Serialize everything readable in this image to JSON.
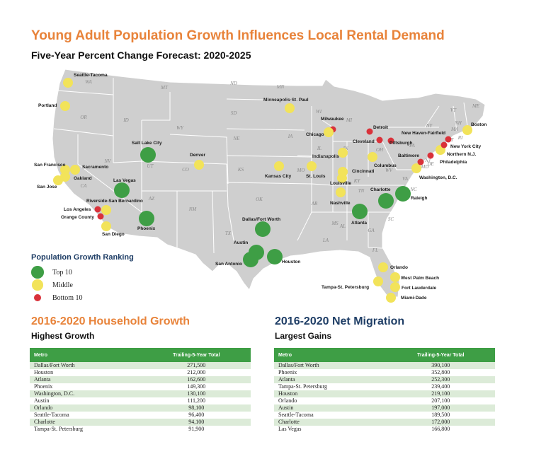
{
  "title": "Young Adult Population Growth Influences Local Rental Demand",
  "subtitle": "Five-Year Percent Change Forecast: 2020-2025",
  "colors": {
    "top10": "#3e9e45",
    "middle": "#f2e35a",
    "bottom10": "#d9323a",
    "map": "#cfcfcf",
    "accent": "#e8833a",
    "navy": "#1f3e66"
  },
  "states": [
    "WA",
    "OR",
    "ID",
    "MT",
    "WY",
    "NV",
    "CA",
    "UT",
    "CO",
    "AZ",
    "NM",
    "ND",
    "SD",
    "NE",
    "KS",
    "OK",
    "TX",
    "MN",
    "IA",
    "MO",
    "AR",
    "LA",
    "WI",
    "IL",
    "MI",
    "IN",
    "OH",
    "KY",
    "TN",
    "MS",
    "AL",
    "GA",
    "FL",
    "SC",
    "NC",
    "VA",
    "WV",
    "PA",
    "NY",
    "VT",
    "NH",
    "ME",
    "MA",
    "RI",
    "CT",
    "NJ",
    "DE",
    "MD"
  ],
  "metros": [
    {
      "name": "Seattle-Tacoma",
      "tier": "middle"
    },
    {
      "name": "Portland",
      "tier": "middle"
    },
    {
      "name": "San Francisco",
      "tier": "middle"
    },
    {
      "name": "Sacramento",
      "tier": "middle"
    },
    {
      "name": "Oakland",
      "tier": "middle"
    },
    {
      "name": "San Jose",
      "tier": "middle"
    },
    {
      "name": "Salt Lake City",
      "tier": "top10"
    },
    {
      "name": "Las Vegas",
      "tier": "top10"
    },
    {
      "name": "Riverside-San Bernardino",
      "tier": "middle"
    },
    {
      "name": "Los Angeles",
      "tier": "bottom10"
    },
    {
      "name": "Orange County",
      "tier": "bottom10"
    },
    {
      "name": "San Diego",
      "tier": "middle"
    },
    {
      "name": "Phoenix",
      "tier": "top10"
    },
    {
      "name": "Denver",
      "tier": "middle"
    },
    {
      "name": "Minneapolis-St. Paul",
      "tier": "middle"
    },
    {
      "name": "Kansas City",
      "tier": "middle"
    },
    {
      "name": "St. Louis",
      "tier": "middle"
    },
    {
      "name": "Dallas/Fort Worth",
      "tier": "top10"
    },
    {
      "name": "Austin",
      "tier": "top10"
    },
    {
      "name": "San Antonio",
      "tier": "top10"
    },
    {
      "name": "Houston",
      "tier": "top10"
    },
    {
      "name": "Milwaukee",
      "tier": "bottom10"
    },
    {
      "name": "Chicago",
      "tier": "middle"
    },
    {
      "name": "Detroit",
      "tier": "bottom10"
    },
    {
      "name": "Cleveland",
      "tier": "bottom10"
    },
    {
      "name": "Pittsburgh",
      "tier": "bottom10"
    },
    {
      "name": "Indianapolis",
      "tier": "middle"
    },
    {
      "name": "Columbus",
      "tier": "middle"
    },
    {
      "name": "Cincinnati",
      "tier": "middle"
    },
    {
      "name": "Louisville",
      "tier": "middle"
    },
    {
      "name": "Nashville",
      "tier": "middle"
    },
    {
      "name": "Atlanta",
      "tier": "top10"
    },
    {
      "name": "Charlotte",
      "tier": "top10"
    },
    {
      "name": "Raleigh",
      "tier": "top10"
    },
    {
      "name": "Washington, D.C.",
      "tier": "middle"
    },
    {
      "name": "Baltimore",
      "tier": "bottom10"
    },
    {
      "name": "Philadelphia",
      "tier": "bottom10"
    },
    {
      "name": "Northern N.J.",
      "tier": "middle"
    },
    {
      "name": "New York City",
      "tier": "bottom10"
    },
    {
      "name": "New Haven-Fairfield",
      "tier": "bottom10"
    },
    {
      "name": "Boston",
      "tier": "middle"
    },
    {
      "name": "Orlando",
      "tier": "middle"
    },
    {
      "name": "West Palm Beach",
      "tier": "middle"
    },
    {
      "name": "Fort Lauderdale",
      "tier": "middle"
    },
    {
      "name": "Miami-Dade",
      "tier": "middle"
    },
    {
      "name": "Tampa-St. Petersburg",
      "tier": "middle"
    }
  ],
  "legend": {
    "title": "Population Growth Ranking",
    "items": [
      {
        "label": "Top 10",
        "tier": "top10"
      },
      {
        "label": "Middle",
        "tier": "middle"
      },
      {
        "label": "Bottom 10",
        "tier": "bottom10"
      }
    ]
  },
  "household": {
    "title": "2016-2020 Household Growth",
    "subtitle": "Highest Growth",
    "headers": [
      "Metro",
      "Trailing-5-Year Total"
    ],
    "rows": [
      [
        "Dallas/Fort Worth",
        "271,500"
      ],
      [
        "Houston",
        "212,000"
      ],
      [
        "Atlanta",
        "162,600"
      ],
      [
        "Phoenix",
        "149,300"
      ],
      [
        "Washington, D.C.",
        "130,100"
      ],
      [
        "Austin",
        "111,200"
      ],
      [
        "Orlando",
        "98,100"
      ],
      [
        "Seattle-Tacoma",
        "96,400"
      ],
      [
        "Charlotte",
        "94,100"
      ],
      [
        "Tampa-St. Petersburg",
        "91,900"
      ]
    ]
  },
  "migration": {
    "title": "2016-2020 Net Migration",
    "subtitle": "Largest Gains",
    "headers": [
      "Metro",
      "Trailing-5-Year Total"
    ],
    "rows": [
      [
        "Dallas/Fort Worth",
        "390,100"
      ],
      [
        "Phoenix",
        "352,800"
      ],
      [
        "Atlanta",
        "252,300"
      ],
      [
        "Tampa-St. Petersburg",
        "239,400"
      ],
      [
        "Houston",
        "219,100"
      ],
      [
        "Orlando",
        "207,100"
      ],
      [
        "Austin",
        "197,000"
      ],
      [
        "Seattle-Tacoma",
        "189,500"
      ],
      [
        "Charlotte",
        "172,000"
      ],
      [
        "Las Vegas",
        "166,800"
      ]
    ]
  }
}
